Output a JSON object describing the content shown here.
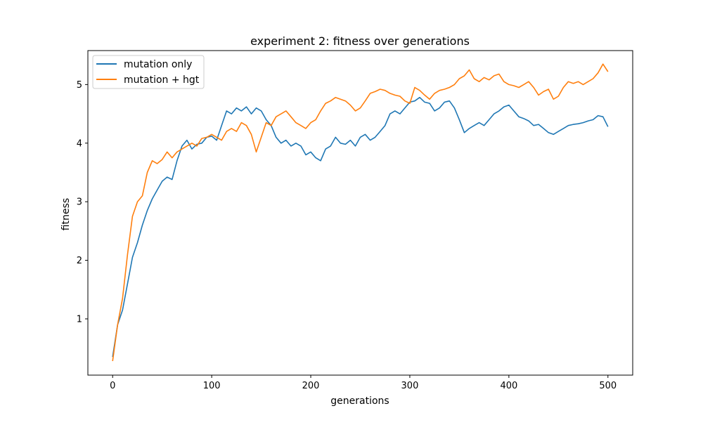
{
  "chart_data": {
    "type": "line",
    "title": "experiment 2: fitness over generations",
    "xlabel": "generations",
    "ylabel": "fitness",
    "xlim": [
      -25,
      525
    ],
    "ylim": [
      0.04,
      5.58
    ],
    "xticks": [
      0,
      100,
      200,
      300,
      400,
      500
    ],
    "yticks": [
      1,
      2,
      3,
      4,
      5
    ],
    "grid": false,
    "legend_position": "upper-left",
    "series": [
      {
        "name": "mutation only",
        "color": "#1f77b4",
        "x": [
          0,
          5,
          10,
          15,
          20,
          25,
          30,
          35,
          40,
          45,
          50,
          55,
          60,
          65,
          70,
          75,
          80,
          85,
          90,
          95,
          100,
          105,
          110,
          115,
          120,
          125,
          130,
          135,
          140,
          145,
          150,
          155,
          160,
          165,
          170,
          175,
          180,
          185,
          190,
          195,
          200,
          205,
          210,
          215,
          220,
          225,
          230,
          235,
          240,
          245,
          250,
          255,
          260,
          265,
          270,
          275,
          280,
          285,
          290,
          295,
          300,
          305,
          310,
          315,
          320,
          325,
          330,
          335,
          340,
          345,
          350,
          355,
          360,
          365,
          370,
          375,
          380,
          385,
          390,
          395,
          400,
          405,
          410,
          415,
          420,
          425,
          430,
          435,
          440,
          445,
          450,
          455,
          460,
          465,
          470,
          475,
          480,
          485,
          490,
          495,
          500
        ],
        "y": [
          0.35,
          0.9,
          1.15,
          1.6,
          2.05,
          2.3,
          2.6,
          2.85,
          3.05,
          3.2,
          3.35,
          3.42,
          3.38,
          3.7,
          3.95,
          4.05,
          3.9,
          3.98,
          4.0,
          4.1,
          4.12,
          4.05,
          4.3,
          4.55,
          4.5,
          4.6,
          4.55,
          4.62,
          4.5,
          4.6,
          4.55,
          4.4,
          4.3,
          4.1,
          4.0,
          4.05,
          3.95,
          4.0,
          3.95,
          3.8,
          3.85,
          3.75,
          3.7,
          3.9,
          3.95,
          4.1,
          4.0,
          3.98,
          4.05,
          3.95,
          4.1,
          4.15,
          4.05,
          4.1,
          4.2,
          4.3,
          4.5,
          4.55,
          4.5,
          4.6,
          4.7,
          4.72,
          4.78,
          4.7,
          4.68,
          4.55,
          4.6,
          4.7,
          4.72,
          4.6,
          4.4,
          4.18,
          4.25,
          4.3,
          4.35,
          4.3,
          4.4,
          4.5,
          4.55,
          4.62,
          4.65,
          4.55,
          4.45,
          4.42,
          4.38,
          4.3,
          4.32,
          4.25,
          4.18,
          4.15,
          4.2,
          4.25,
          4.3,
          4.32,
          4.33,
          4.35,
          4.38,
          4.4,
          4.47,
          4.45,
          4.28
        ]
      },
      {
        "name": "mutation + hgt",
        "color": "#ff7f0e",
        "x": [
          0,
          5,
          10,
          15,
          20,
          25,
          30,
          35,
          40,
          45,
          50,
          55,
          60,
          65,
          70,
          75,
          80,
          85,
          90,
          95,
          100,
          105,
          110,
          115,
          120,
          125,
          130,
          135,
          140,
          145,
          150,
          155,
          160,
          165,
          170,
          175,
          180,
          185,
          190,
          195,
          200,
          205,
          210,
          215,
          220,
          225,
          230,
          235,
          240,
          245,
          250,
          255,
          260,
          265,
          270,
          275,
          280,
          285,
          290,
          295,
          300,
          305,
          310,
          315,
          320,
          325,
          330,
          335,
          340,
          345,
          350,
          355,
          360,
          365,
          370,
          375,
          380,
          385,
          390,
          395,
          400,
          405,
          410,
          415,
          420,
          425,
          430,
          435,
          440,
          445,
          450,
          455,
          460,
          465,
          470,
          475,
          480,
          485,
          490,
          495,
          500
        ],
        "y": [
          0.28,
          0.9,
          1.35,
          2.1,
          2.75,
          3.0,
          3.1,
          3.5,
          3.7,
          3.65,
          3.72,
          3.85,
          3.75,
          3.85,
          3.9,
          3.95,
          4.0,
          3.95,
          4.08,
          4.1,
          4.15,
          4.1,
          4.05,
          4.2,
          4.25,
          4.2,
          4.35,
          4.3,
          4.15,
          3.85,
          4.1,
          4.35,
          4.3,
          4.45,
          4.5,
          4.55,
          4.45,
          4.35,
          4.3,
          4.25,
          4.35,
          4.4,
          4.55,
          4.68,
          4.72,
          4.78,
          4.75,
          4.72,
          4.65,
          4.55,
          4.6,
          4.72,
          4.85,
          4.88,
          4.92,
          4.9,
          4.85,
          4.82,
          4.8,
          4.72,
          4.68,
          4.95,
          4.9,
          4.82,
          4.75,
          4.85,
          4.9,
          4.92,
          4.95,
          5.0,
          5.1,
          5.15,
          5.25,
          5.1,
          5.05,
          5.12,
          5.08,
          5.15,
          5.18,
          5.05,
          5.0,
          4.98,
          4.95,
          5.0,
          5.05,
          4.95,
          4.82,
          4.88,
          4.92,
          4.75,
          4.8,
          4.95,
          5.05,
          5.02,
          5.05,
          5.0,
          5.05,
          5.1,
          5.2,
          5.35,
          5.22
        ]
      }
    ]
  }
}
